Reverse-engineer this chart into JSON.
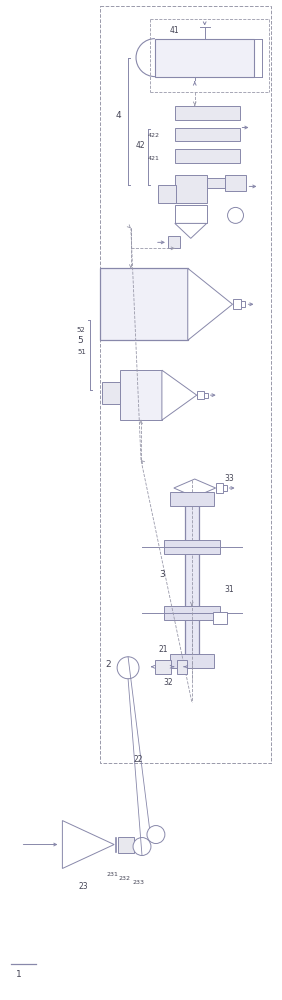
{
  "bg_color": "#ffffff",
  "line_color": "#8888aa",
  "dashed_color": "#9999aa",
  "label_color": "#444455",
  "fig_width": 2.82,
  "fig_height": 10.0,
  "dpi": 100
}
